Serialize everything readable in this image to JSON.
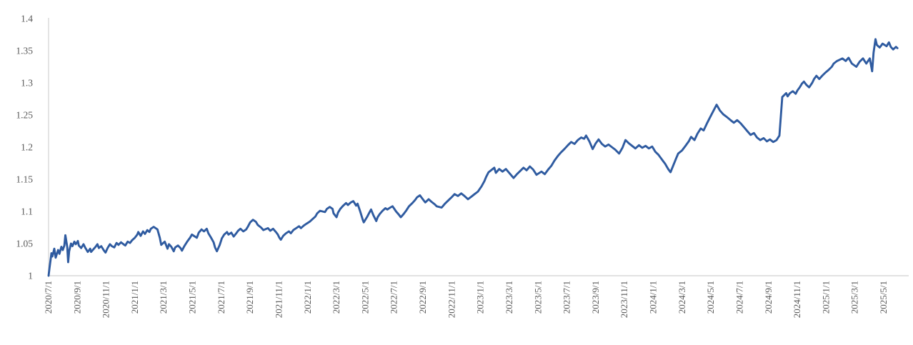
{
  "chart_data": {
    "type": "line",
    "title": "",
    "legend_position": "none",
    "grid": "off",
    "line_color": "#2F5BA0",
    "axis_line_color": "#D9D9D9",
    "tick_label_color": "#595959",
    "background_color": "#FFFFFF",
    "ylabel": "",
    "xlabel": "",
    "ylim": [
      1,
      1.4
    ],
    "y_tick_values": [
      1,
      1.05,
      1.1,
      1.15,
      1.2,
      1.25,
      1.3,
      1.35,
      1.4
    ],
    "y_tick_labels": [
      "1",
      "1.05",
      "1.1",
      "1.15",
      "1.2",
      "1.25",
      "1.3",
      "1.35",
      "1.4"
    ],
    "x_tick_labels": [
      "2020/7/1",
      "2020/9/1",
      "2020/11/1",
      "2021/1/1",
      "2021/3/1",
      "2021/5/1",
      "2021/7/1",
      "2021/9/1",
      "2021/11/1",
      "2022/1/1",
      "2022/3/1",
      "2022/5/1",
      "2022/7/1",
      "2022/9/1",
      "2022/11/1",
      "2023/1/1",
      "2023/3/1",
      "2023/5/1",
      "2023/7/1",
      "2023/9/1",
      "2023/11/1",
      "2024/1/1",
      "2024/3/1",
      "2024/5/1",
      "2024/7/1",
      "2024/9/1",
      "2024/11/1",
      "2025/1/1",
      "2025/3/1",
      "2025/5/1"
    ],
    "x_label_rotation_deg": -90,
    "points": [
      [
        "2020/7/1",
        1.0
      ],
      [
        "2020/7/3",
        1.012
      ],
      [
        "2020/7/7",
        1.035
      ],
      [
        "2020/7/9",
        1.03
      ],
      [
        "2020/7/13",
        1.042
      ],
      [
        "2020/7/16",
        1.028
      ],
      [
        "2020/7/21",
        1.04
      ],
      [
        "2020/7/24",
        1.034
      ],
      [
        "2020/7/28",
        1.045
      ],
      [
        "2020/7/31",
        1.04
      ],
      [
        "2020/8/4",
        1.047
      ],
      [
        "2020/8/6",
        1.063
      ],
      [
        "2020/8/10",
        1.045
      ],
      [
        "2020/8/12",
        1.021
      ],
      [
        "2020/8/14",
        1.038
      ],
      [
        "2020/8/18",
        1.05
      ],
      [
        "2020/8/21",
        1.046
      ],
      [
        "2020/8/25",
        1.053
      ],
      [
        "2020/8/28",
        1.049
      ],
      [
        "2020/9/2",
        1.054
      ],
      [
        "2020/9/4",
        1.047
      ],
      [
        "2020/9/9",
        1.043
      ],
      [
        "2020/9/14",
        1.049
      ],
      [
        "2020/9/18",
        1.043
      ],
      [
        "2020/9/23",
        1.037
      ],
      [
        "2020/9/28",
        1.042
      ],
      [
        "2020/9/30",
        1.037
      ],
      [
        "2020/10/9",
        1.045
      ],
      [
        "2020/10/13",
        1.049
      ],
      [
        "2020/10/16",
        1.043
      ],
      [
        "2020/10/21",
        1.046
      ],
      [
        "2020/10/26",
        1.04
      ],
      [
        "2020/10/30",
        1.036
      ],
      [
        "2020/11/4",
        1.043
      ],
      [
        "2020/11/9",
        1.049
      ],
      [
        "2020/11/13",
        1.046
      ],
      [
        "2020/11/18",
        1.044
      ],
      [
        "2020/11/23",
        1.051
      ],
      [
        "2020/11/27",
        1.048
      ],
      [
        "2020/12/2",
        1.052
      ],
      [
        "2020/12/7",
        1.049
      ],
      [
        "2020/12/11",
        1.047
      ],
      [
        "2020/12/16",
        1.053
      ],
      [
        "2020/12/21",
        1.051
      ],
      [
        "2020/12/25",
        1.055
      ],
      [
        "2020/12/31",
        1.059
      ],
      [
        "2021/1/6",
        1.064
      ],
      [
        "2021/1/8",
        1.068
      ],
      [
        "2021/1/13",
        1.062
      ],
      [
        "2021/1/18",
        1.069
      ],
      [
        "2021/1/22",
        1.065
      ],
      [
        "2021/1/27",
        1.071
      ],
      [
        "2021/2/1",
        1.068
      ],
      [
        "2021/2/4",
        1.073
      ],
      [
        "2021/2/10",
        1.076
      ],
      [
        "2021/2/18",
        1.072
      ],
      [
        "2021/2/23",
        1.059
      ],
      [
        "2021/2/26",
        1.048
      ],
      [
        "2021/3/3",
        1.053
      ],
      [
        "2021/3/9",
        1.042
      ],
      [
        "2021/3/12",
        1.049
      ],
      [
        "2021/3/17",
        1.045
      ],
      [
        "2021/3/22",
        1.038
      ],
      [
        "2021/3/25",
        1.044
      ],
      [
        "2021/3/31",
        1.047
      ],
      [
        "2021/4/6",
        1.043
      ],
      [
        "2021/4/9",
        1.039
      ],
      [
        "2021/4/14",
        1.046
      ],
      [
        "2021/4/20",
        1.053
      ],
      [
        "2021/4/26",
        1.059
      ],
      [
        "2021/4/30",
        1.064
      ],
      [
        "2021/5/10",
        1.059
      ],
      [
        "2021/5/14",
        1.067
      ],
      [
        "2021/5/20",
        1.072
      ],
      [
        "2021/5/25",
        1.069
      ],
      [
        "2021/5/31",
        1.073
      ],
      [
        "2021/6/4",
        1.066
      ],
      [
        "2021/6/9",
        1.06
      ],
      [
        "2021/6/15",
        1.052
      ],
      [
        "2021/6/18",
        1.044
      ],
      [
        "2021/6/22",
        1.038
      ],
      [
        "2021/6/28",
        1.048
      ],
      [
        "2021/7/2",
        1.058
      ],
      [
        "2021/7/7",
        1.064
      ],
      [
        "2021/7/13",
        1.068
      ],
      [
        "2021/7/16",
        1.064
      ],
      [
        "2021/7/22",
        1.067
      ],
      [
        "2021/7/27",
        1.061
      ],
      [
        "2021/8/2",
        1.066
      ],
      [
        "2021/8/6",
        1.07
      ],
      [
        "2021/8/11",
        1.073
      ],
      [
        "2021/8/17",
        1.069
      ],
      [
        "2021/8/23",
        1.072
      ],
      [
        "2021/8/27",
        1.077
      ],
      [
        "2021/9/1",
        1.083
      ],
      [
        "2021/9/7",
        1.087
      ],
      [
        "2021/9/13",
        1.084
      ],
      [
        "2021/9/17",
        1.079
      ],
      [
        "2021/9/24",
        1.075
      ],
      [
        "2021/9/29",
        1.071
      ],
      [
        "2021/10/8",
        1.074
      ],
      [
        "2021/10/13",
        1.07
      ],
      [
        "2021/10/19",
        1.073
      ],
      [
        "2021/10/25",
        1.068
      ],
      [
        "2021/10/29",
        1.064
      ],
      [
        "2021/11/2",
        1.059
      ],
      [
        "2021/11/5",
        1.056
      ],
      [
        "2021/11/10",
        1.062
      ],
      [
        "2021/11/16",
        1.066
      ],
      [
        "2021/11/22",
        1.069
      ],
      [
        "2021/11/26",
        1.066
      ],
      [
        "2021/12/1",
        1.071
      ],
      [
        "2021/12/7",
        1.074
      ],
      [
        "2021/12/13",
        1.077
      ],
      [
        "2021/12/17",
        1.074
      ],
      [
        "2021/12/23",
        1.078
      ],
      [
        "2021/12/29",
        1.081
      ],
      [
        "2022/1/5",
        1.084
      ],
      [
        "2022/1/11",
        1.088
      ],
      [
        "2022/1/17",
        1.092
      ],
      [
        "2022/1/21",
        1.097
      ],
      [
        "2022/1/27",
        1.101
      ],
      [
        "2022/2/7",
        1.099
      ],
      [
        "2022/2/11",
        1.104
      ],
      [
        "2022/2/17",
        1.107
      ],
      [
        "2022/2/23",
        1.104
      ],
      [
        "2022/2/25",
        1.097
      ],
      [
        "2022/3/1",
        1.091
      ],
      [
        "2022/3/4",
        1.098
      ],
      [
        "2022/3/9",
        1.104
      ],
      [
        "2022/3/15",
        1.109
      ],
      [
        "2022/3/21",
        1.113
      ],
      [
        "2022/3/25",
        1.11
      ],
      [
        "2022/3/31",
        1.114
      ],
      [
        "2022/4/6",
        1.116
      ],
      [
        "2022/4/12",
        1.109
      ],
      [
        "2022/4/15",
        1.112
      ],
      [
        "2022/4/20",
        1.101
      ],
      [
        "2022/4/26",
        1.087
      ],
      [
        "2022/4/28",
        1.083
      ],
      [
        "2022/5/5",
        1.092
      ],
      [
        "2022/5/10",
        1.099
      ],
      [
        "2022/5/13",
        1.103
      ],
      [
        "2022/5/18",
        1.094
      ],
      [
        "2022/5/24",
        1.085
      ],
      [
        "2022/5/27",
        1.091
      ],
      [
        "2022/6/1",
        1.096
      ],
      [
        "2022/6/7",
        1.101
      ],
      [
        "2022/6/13",
        1.105
      ],
      [
        "2022/6/17",
        1.103
      ],
      [
        "2022/6/23",
        1.106
      ],
      [
        "2022/6/28",
        1.108
      ],
      [
        "2022/7/5",
        1.1
      ],
      [
        "2022/7/11",
        1.095
      ],
      [
        "2022/7/15",
        1.091
      ],
      [
        "2022/7/21",
        1.096
      ],
      [
        "2022/7/27",
        1.102
      ],
      [
        "2022/8/2",
        1.108
      ],
      [
        "2022/8/9",
        1.113
      ],
      [
        "2022/8/15",
        1.118
      ],
      [
        "2022/8/19",
        1.122
      ],
      [
        "2022/8/25",
        1.125
      ],
      [
        "2022/8/31",
        1.119
      ],
      [
        "2022/9/6",
        1.114
      ],
      [
        "2022/9/13",
        1.119
      ],
      [
        "2022/9/19",
        1.115
      ],
      [
        "2022/9/26",
        1.111
      ],
      [
        "2022/9/30",
        1.108
      ],
      [
        "2022/10/10",
        1.106
      ],
      [
        "2022/10/17",
        1.112
      ],
      [
        "2022/10/24",
        1.117
      ],
      [
        "2022/10/31",
        1.122
      ],
      [
        "2022/11/7",
        1.127
      ],
      [
        "2022/11/14",
        1.124
      ],
      [
        "2022/11/21",
        1.128
      ],
      [
        "2022/11/28",
        1.124
      ],
      [
        "2022/12/5",
        1.119
      ],
      [
        "2022/12/12",
        1.123
      ],
      [
        "2022/12/19",
        1.127
      ],
      [
        "2022/12/26",
        1.131
      ],
      [
        "2023/1/3",
        1.139
      ],
      [
        "2023/1/9",
        1.147
      ],
      [
        "2023/1/13",
        1.154
      ],
      [
        "2023/1/18",
        1.161
      ],
      [
        "2023/1/30",
        1.168
      ],
      [
        "2023/2/3",
        1.16
      ],
      [
        "2023/2/10",
        1.166
      ],
      [
        "2023/2/17",
        1.162
      ],
      [
        "2023/2/24",
        1.166
      ],
      [
        "2023/3/3",
        1.158
      ],
      [
        "2023/3/10",
        1.152
      ],
      [
        "2023/3/17",
        1.158
      ],
      [
        "2023/3/24",
        1.163
      ],
      [
        "2023/3/31",
        1.168
      ],
      [
        "2023/4/7",
        1.164
      ],
      [
        "2023/4/14",
        1.17
      ],
      [
        "2023/4/21",
        1.165
      ],
      [
        "2023/4/28",
        1.157
      ],
      [
        "2023/5/8",
        1.162
      ],
      [
        "2023/5/15",
        1.158
      ],
      [
        "2023/5/22",
        1.165
      ],
      [
        "2023/5/29",
        1.171
      ],
      [
        "2023/6/5",
        1.179
      ],
      [
        "2023/6/12",
        1.186
      ],
      [
        "2023/6/19",
        1.192
      ],
      [
        "2023/6/26",
        1.197
      ],
      [
        "2023/7/3",
        1.203
      ],
      [
        "2023/7/10",
        1.208
      ],
      [
        "2023/7/17",
        1.205
      ],
      [
        "2023/7/24",
        1.211
      ],
      [
        "2023/7/31",
        1.215
      ],
      [
        "2023/8/7",
        1.213
      ],
      [
        "2023/8/11",
        1.218
      ],
      [
        "2023/8/18",
        1.209
      ],
      [
        "2023/8/25",
        1.197
      ],
      [
        "2023/9/1",
        1.206
      ],
      [
        "2023/9/7",
        1.212
      ],
      [
        "2023/9/14",
        1.205
      ],
      [
        "2023/9/21",
        1.201
      ],
      [
        "2023/9/28",
        1.204
      ],
      [
        "2023/10/12",
        1.196
      ],
      [
        "2023/10/20",
        1.19
      ],
      [
        "2023/10/27",
        1.199
      ],
      [
        "2023/11/3",
        1.211
      ],
      [
        "2023/11/10",
        1.206
      ],
      [
        "2023/11/17",
        1.202
      ],
      [
        "2023/11/24",
        1.198
      ],
      [
        "2023/12/1",
        1.203
      ],
      [
        "2023/12/8",
        1.199
      ],
      [
        "2023/12/15",
        1.202
      ],
      [
        "2023/12/22",
        1.198
      ],
      [
        "2023/12/29",
        1.201
      ],
      [
        "2024/1/5",
        1.193
      ],
      [
        "2024/1/12",
        1.188
      ],
      [
        "2024/1/19",
        1.181
      ],
      [
        "2024/1/26",
        1.174
      ],
      [
        "2024/2/2",
        1.166
      ],
      [
        "2024/2/7",
        1.161
      ],
      [
        "2024/2/19",
        1.183
      ],
      [
        "2024/2/23",
        1.19
      ],
      [
        "2024/3/1",
        1.195
      ],
      [
        "2024/3/8",
        1.202
      ],
      [
        "2024/3/15",
        1.209
      ],
      [
        "2024/3/20",
        1.216
      ],
      [
        "2024/3/27",
        1.211
      ],
      [
        "2024/4/3",
        1.221
      ],
      [
        "2024/4/10",
        1.229
      ],
      [
        "2024/4/16",
        1.226
      ],
      [
        "2024/4/23",
        1.237
      ],
      [
        "2024/4/30",
        1.247
      ],
      [
        "2024/5/8",
        1.259
      ],
      [
        "2024/5/13",
        1.266
      ],
      [
        "2024/5/20",
        1.257
      ],
      [
        "2024/5/27",
        1.251
      ],
      [
        "2024/6/4",
        1.247
      ],
      [
        "2024/6/12",
        1.242
      ],
      [
        "2024/6/19",
        1.238
      ],
      [
        "2024/6/26",
        1.242
      ],
      [
        "2024/7/3",
        1.237
      ],
      [
        "2024/7/10",
        1.231
      ],
      [
        "2024/7/17",
        1.225
      ],
      [
        "2024/7/24",
        1.219
      ],
      [
        "2024/7/31",
        1.222
      ],
      [
        "2024/8/7",
        1.215
      ],
      [
        "2024/8/14",
        1.211
      ],
      [
        "2024/8/21",
        1.214
      ],
      [
        "2024/8/28",
        1.209
      ],
      [
        "2024/9/4",
        1.212
      ],
      [
        "2024/9/11",
        1.208
      ],
      [
        "2024/9/18",
        1.211
      ],
      [
        "2024/9/24",
        1.218
      ],
      [
        "2024/9/27",
        1.248
      ],
      [
        "2024/9/30",
        1.278
      ],
      [
        "2024/10/8",
        1.284
      ],
      [
        "2024/10/11",
        1.279
      ],
      [
        "2024/10/16",
        1.284
      ],
      [
        "2024/10/22",
        1.287
      ],
      [
        "2024/10/28",
        1.283
      ],
      [
        "2024/11/1",
        1.288
      ],
      [
        "2024/11/6",
        1.293
      ],
      [
        "2024/11/11",
        1.299
      ],
      [
        "2024/11/15",
        1.302
      ],
      [
        "2024/11/20",
        1.297
      ],
      [
        "2024/11/26",
        1.293
      ],
      [
        "2024/12/2",
        1.3
      ],
      [
        "2024/12/6",
        1.306
      ],
      [
        "2024/12/11",
        1.311
      ],
      [
        "2024/12/17",
        1.306
      ],
      [
        "2024/12/23",
        1.311
      ],
      [
        "2024/12/30",
        1.316
      ],
      [
        "2025/1/6",
        1.32
      ],
      [
        "2025/1/13",
        1.325
      ],
      [
        "2025/1/17",
        1.33
      ],
      [
        "2025/1/24",
        1.334
      ],
      [
        "2025/2/5",
        1.338
      ],
      [
        "2025/2/12",
        1.334
      ],
      [
        "2025/2/18",
        1.339
      ],
      [
        "2025/2/25",
        1.33
      ],
      [
        "2025/3/4",
        1.325
      ],
      [
        "2025/3/11",
        1.333
      ],
      [
        "2025/3/18",
        1.338
      ],
      [
        "2025/3/25",
        1.33
      ],
      [
        "2025/4/2",
        1.338
      ],
      [
        "2025/4/7",
        1.318
      ],
      [
        "2025/4/10",
        1.347
      ],
      [
        "2025/4/14",
        1.368
      ],
      [
        "2025/4/17",
        1.359
      ],
      [
        "2025/4/23",
        1.355
      ],
      [
        "2025/4/29",
        1.361
      ],
      [
        "2025/5/7",
        1.357
      ],
      [
        "2025/5/12",
        1.363
      ],
      [
        "2025/5/16",
        1.356
      ],
      [
        "2025/5/21",
        1.352
      ],
      [
        "2025/5/27",
        1.356
      ],
      [
        "2025/5/30",
        1.354
      ]
    ]
  }
}
